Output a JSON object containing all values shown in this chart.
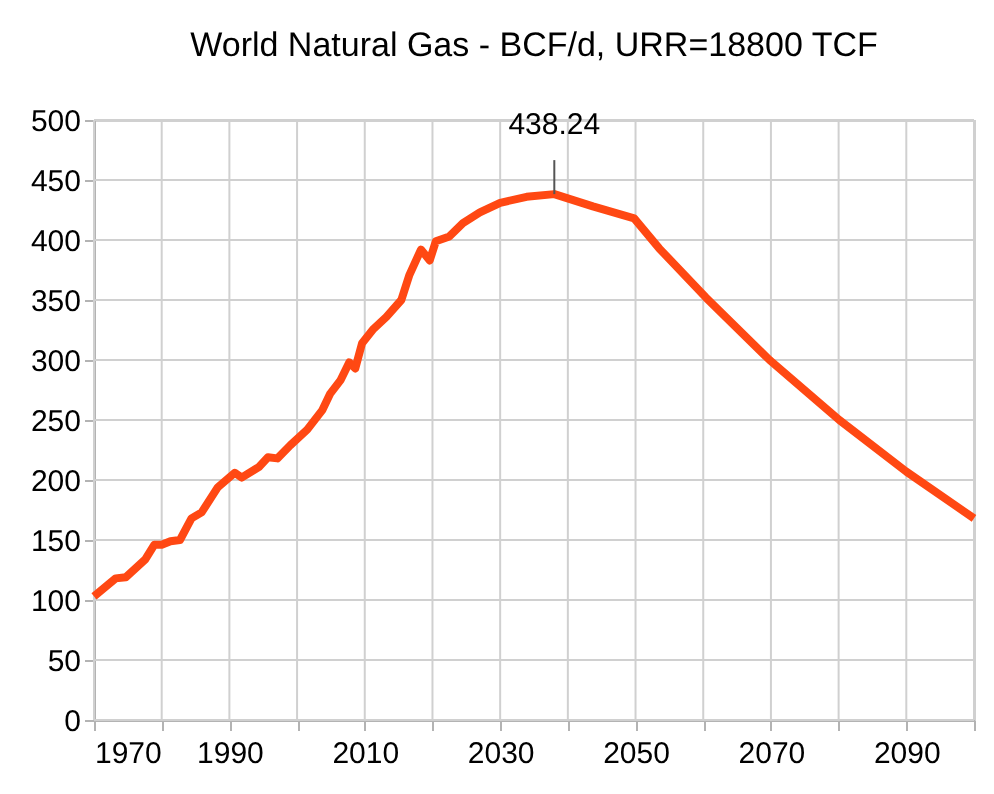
{
  "chart_data": {
    "type": "line",
    "title": "World Natural Gas - BCF/d, URR=18800 TCF",
    "x": [
      1970,
      1973.2,
      1974.7,
      1977.6,
      1978.9,
      1980,
      1981.3,
      1982.7,
      1984.4,
      1985.9,
      1988.3,
      1990.8,
      1991.8,
      1994.4,
      1995.7,
      1997.1,
      1999,
      2001.5,
      2003.7,
      2004.9,
      2006.4,
      2007.7,
      2008.6,
      2009.6,
      2011.3,
      2013.2,
      2015.4,
      2016.6,
      2018.3,
      2019.6,
      2020.5,
      2022.5,
      2024.5,
      2027,
      2030,
      2033.9,
      2038,
      2043.7,
      2049.8,
      2053.5,
      2060.4,
      2069.8,
      2080.1,
      2090,
      2100
    ],
    "series": [
      {
        "color": "#ff4813",
        "values": [
          103,
          118,
          119,
          134,
          146,
          146,
          149,
          150,
          168,
          173,
          194,
          206,
          202,
          211,
          219,
          218,
          229,
          242,
          258,
          272,
          283,
          298,
          293,
          314,
          326,
          336,
          350,
          371,
          392,
          383,
          399,
          403,
          414,
          423,
          431,
          436,
          438.24,
          428,
          418,
          393,
          352,
          300,
          250,
          207,
          168
        ]
      }
    ],
    "xlim": [
      1970,
      2100
    ],
    "xticks": [
      1970,
      {
        "value": 1980,
        "label": null
      },
      1990,
      {
        "value": 2000,
        "label": null
      },
      2010,
      {
        "value": 2020,
        "label": null
      },
      2030,
      {
        "value": 2040,
        "label": null
      },
      2050,
      {
        "value": 2060,
        "label": null
      },
      2070,
      {
        "value": 2080,
        "label": null
      },
      2090,
      {
        "value": 2100,
        "label": null
      }
    ],
    "ylim": [
      0,
      500
    ],
    "yticks": [
      0,
      50,
      100,
      150,
      200,
      250,
      300,
      350,
      400,
      450,
      500
    ],
    "grid": true,
    "annotations": [
      {
        "text": "438.24",
        "x": 2038,
        "y": 438.24
      }
    ]
  }
}
